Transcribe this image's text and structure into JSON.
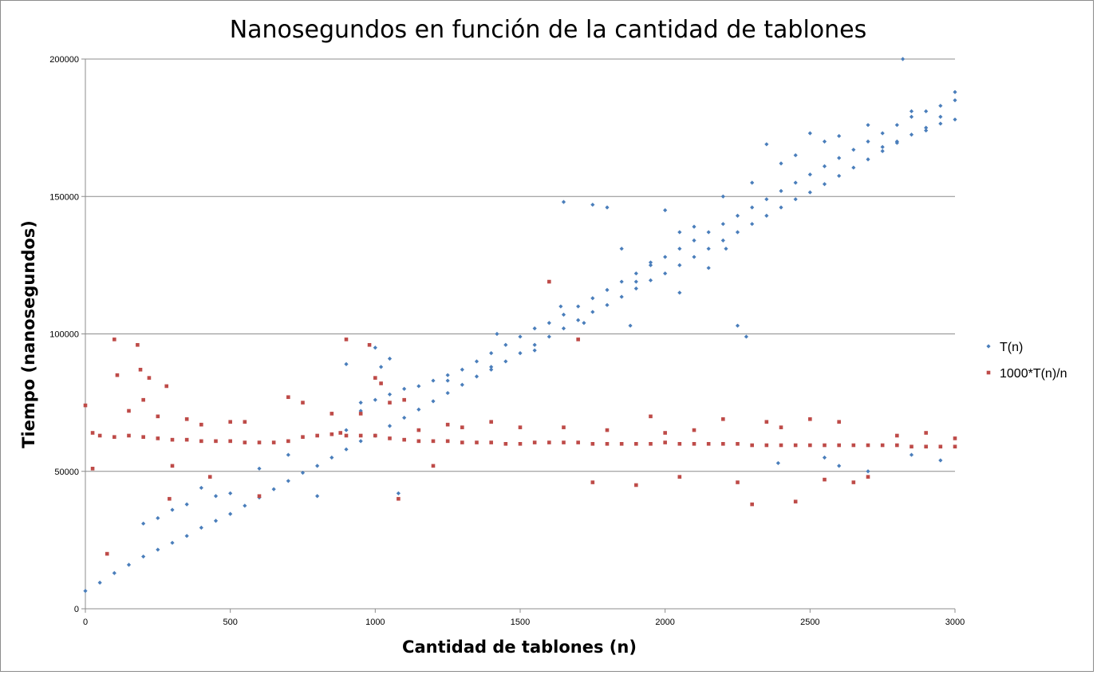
{
  "colors": {
    "series_t": "#4a7ebb",
    "series_norm": "#be4b48",
    "grid": "#8c8c8c",
    "axis": "#8c8c8c"
  },
  "chart_data": {
    "type": "scatter",
    "title": "Nanosegundos en función de la cantidad de tablones",
    "xlabel": "Cantidad de tablones (n)",
    "ylabel": "Tiempo (nanosegundos)",
    "xlim": [
      0,
      3000
    ],
    "ylim": [
      0,
      200000
    ],
    "x_ticks": [
      "0",
      "500",
      "1000",
      "1500",
      "2000",
      "2500",
      "3000"
    ],
    "y_ticks": [
      "0",
      "50000",
      "100000",
      "150000",
      "200000"
    ],
    "grid": "horizontal",
    "legend_position": "right",
    "series": [
      {
        "name": "T(n)",
        "marker": "diamond",
        "color": "#4a7ebb",
        "points": [
          [
            0,
            6500
          ],
          [
            50,
            9500
          ],
          [
            100,
            13000
          ],
          [
            150,
            16000
          ],
          [
            200,
            19000
          ],
          [
            250,
            21500
          ],
          [
            300,
            24000
          ],
          [
            350,
            26500
          ],
          [
            400,
            29500
          ],
          [
            450,
            32000
          ],
          [
            500,
            34500
          ],
          [
            550,
            37500
          ],
          [
            600,
            40500
          ],
          [
            650,
            43500
          ],
          [
            700,
            46500
          ],
          [
            750,
            49500
          ],
          [
            800,
            52000
          ],
          [
            850,
            55000
          ],
          [
            900,
            58000
          ],
          [
            950,
            61000
          ],
          [
            1000,
            63000
          ],
          [
            1050,
            66500
          ],
          [
            1100,
            69500
          ],
          [
            1150,
            72500
          ],
          [
            1200,
            75500
          ],
          [
            1250,
            78500
          ],
          [
            1300,
            81500
          ],
          [
            1350,
            84500
          ],
          [
            1400,
            87000
          ],
          [
            1450,
            90000
          ],
          [
            1500,
            93000
          ],
          [
            1550,
            96000
          ],
          [
            1600,
            99000
          ],
          [
            1650,
            102000
          ],
          [
            1700,
            105000
          ],
          [
            1750,
            108000
          ],
          [
            1800,
            110500
          ],
          [
            1850,
            113500
          ],
          [
            1900,
            116500
          ],
          [
            1950,
            119500
          ],
          [
            2000,
            122000
          ],
          [
            2050,
            125000
          ],
          [
            2100,
            128000
          ],
          [
            2150,
            131000
          ],
          [
            2200,
            134000
          ],
          [
            2250,
            137000
          ],
          [
            2300,
            140000
          ],
          [
            2350,
            143000
          ],
          [
            2400,
            146000
          ],
          [
            2450,
            149000
          ],
          [
            2500,
            151500
          ],
          [
            2550,
            154500
          ],
          [
            2600,
            157500
          ],
          [
            2650,
            160500
          ],
          [
            2700,
            163500
          ],
          [
            2750,
            166500
          ],
          [
            2800,
            169500
          ],
          [
            2850,
            172500
          ],
          [
            2900,
            175000
          ],
          [
            2950,
            176500
          ],
          [
            3000,
            178000
          ],
          [
            900,
            65000
          ],
          [
            950,
            72000
          ],
          [
            1000,
            76000
          ],
          [
            1050,
            78000
          ],
          [
            1100,
            80000
          ],
          [
            1150,
            81000
          ],
          [
            1200,
            83000
          ],
          [
            1250,
            85000
          ],
          [
            1300,
            87000
          ],
          [
            1350,
            90000
          ],
          [
            1400,
            93000
          ],
          [
            1450,
            96000
          ],
          [
            1500,
            99000
          ],
          [
            1550,
            102000
          ],
          [
            1600,
            104000
          ],
          [
            1650,
            107000
          ],
          [
            1700,
            110000
          ],
          [
            1750,
            113000
          ],
          [
            1800,
            116000
          ],
          [
            1850,
            119000
          ],
          [
            1900,
            122000
          ],
          [
            1950,
            125000
          ],
          [
            2000,
            128000
          ],
          [
            2050,
            131000
          ],
          [
            2100,
            134000
          ],
          [
            2150,
            137000
          ],
          [
            2200,
            140000
          ],
          [
            2250,
            143000
          ],
          [
            2300,
            146000
          ],
          [
            2350,
            149000
          ],
          [
            2400,
            152000
          ],
          [
            2450,
            155000
          ],
          [
            2500,
            158000
          ],
          [
            2550,
            161000
          ],
          [
            2600,
            164000
          ],
          [
            2650,
            167000
          ],
          [
            2700,
            170000
          ],
          [
            2750,
            173000
          ],
          [
            2800,
            176000
          ],
          [
            2850,
            179000
          ],
          [
            2900,
            181000
          ],
          [
            2950,
            183000
          ],
          [
            3000,
            185000
          ],
          [
            200,
            31000
          ],
          [
            250,
            33000
          ],
          [
            300,
            36000
          ],
          [
            350,
            38000
          ],
          [
            400,
            44000
          ],
          [
            450,
            41000
          ],
          [
            500,
            42000
          ],
          [
            600,
            51000
          ],
          [
            700,
            56000
          ],
          [
            800,
            41000
          ],
          [
            900,
            89000
          ],
          [
            950,
            75000
          ],
          [
            1000,
            95000
          ],
          [
            1020,
            88000
          ],
          [
            1050,
            91000
          ],
          [
            1080,
            42000
          ],
          [
            1250,
            83000
          ],
          [
            1400,
            88000
          ],
          [
            1550,
            94000
          ],
          [
            1650,
            148000
          ],
          [
            1750,
            147000
          ],
          [
            1800,
            146000
          ],
          [
            1850,
            131000
          ],
          [
            1900,
            119000
          ],
          [
            1950,
            126000
          ],
          [
            2000,
            145000
          ],
          [
            2050,
            137000
          ],
          [
            2100,
            139000
          ],
          [
            2150,
            124000
          ],
          [
            2200,
            150000
          ],
          [
            2250,
            103000
          ],
          [
            2300,
            155000
          ],
          [
            2350,
            169000
          ],
          [
            2400,
            162000
          ],
          [
            2450,
            165000
          ],
          [
            2500,
            173000
          ],
          [
            2550,
            170000
          ],
          [
            2600,
            172000
          ],
          [
            2700,
            176000
          ],
          [
            2750,
            168000
          ],
          [
            2800,
            170000
          ],
          [
            2820,
            200000
          ],
          [
            2850,
            181000
          ],
          [
            2900,
            174000
          ],
          [
            2950,
            179000
          ],
          [
            3000,
            188000
          ],
          [
            2550,
            55000
          ],
          [
            2600,
            52000
          ],
          [
            2700,
            50000
          ],
          [
            2850,
            56000
          ],
          [
            2950,
            54000
          ],
          [
            2390,
            53000
          ],
          [
            1420,
            100000
          ],
          [
            1640,
            110000
          ],
          [
            1720,
            104000
          ],
          [
            1880,
            103000
          ],
          [
            2050,
            115000
          ],
          [
            2210,
            131000
          ],
          [
            2280,
            99000
          ]
        ]
      },
      {
        "name": "1000*T(n)/n",
        "marker": "square",
        "color": "#be4b48",
        "points": [
          [
            0,
            74000
          ],
          [
            25,
            64000
          ],
          [
            50,
            63000
          ],
          [
            100,
            62500
          ],
          [
            150,
            63000
          ],
          [
            200,
            62500
          ],
          [
            250,
            62000
          ],
          [
            300,
            61500
          ],
          [
            350,
            61500
          ],
          [
            400,
            61000
          ],
          [
            450,
            61000
          ],
          [
            500,
            61000
          ],
          [
            550,
            60500
          ],
          [
            600,
            60500
          ],
          [
            650,
            60500
          ],
          [
            700,
            61000
          ],
          [
            750,
            62500
          ],
          [
            800,
            63000
          ],
          [
            850,
            63500
          ],
          [
            900,
            63000
          ],
          [
            950,
            63000
          ],
          [
            1000,
            63000
          ],
          [
            1050,
            62000
          ],
          [
            1100,
            61500
          ],
          [
            1150,
            61000
          ],
          [
            1200,
            61000
          ],
          [
            1250,
            61000
          ],
          [
            1300,
            60500
          ],
          [
            1350,
            60500
          ],
          [
            1400,
            60500
          ],
          [
            1450,
            60000
          ],
          [
            1500,
            60000
          ],
          [
            1550,
            60500
          ],
          [
            1600,
            60500
          ],
          [
            1650,
            60500
          ],
          [
            1700,
            60500
          ],
          [
            1750,
            60000
          ],
          [
            1800,
            60000
          ],
          [
            1850,
            60000
          ],
          [
            1900,
            60000
          ],
          [
            1950,
            60000
          ],
          [
            2000,
            60500
          ],
          [
            2050,
            60000
          ],
          [
            2100,
            60000
          ],
          [
            2150,
            60000
          ],
          [
            2200,
            60000
          ],
          [
            2250,
            60000
          ],
          [
            2300,
            59500
          ],
          [
            2350,
            59500
          ],
          [
            2400,
            59500
          ],
          [
            2450,
            59500
          ],
          [
            2500,
            59500
          ],
          [
            2550,
            59500
          ],
          [
            2600,
            59500
          ],
          [
            2650,
            59500
          ],
          [
            2700,
            59500
          ],
          [
            2750,
            59500
          ],
          [
            2800,
            59500
          ],
          [
            2850,
            59000
          ],
          [
            2900,
            59000
          ],
          [
            2950,
            59000
          ],
          [
            3000,
            59000
          ],
          [
            25,
            51000
          ],
          [
            75,
            20000
          ],
          [
            100,
            98000
          ],
          [
            110,
            85000
          ],
          [
            150,
            72000
          ],
          [
            180,
            96000
          ],
          [
            190,
            87000
          ],
          [
            200,
            76000
          ],
          [
            220,
            84000
          ],
          [
            250,
            70000
          ],
          [
            280,
            81000
          ],
          [
            290,
            40000
          ],
          [
            300,
            52000
          ],
          [
            350,
            69000
          ],
          [
            400,
            67000
          ],
          [
            430,
            48000
          ],
          [
            500,
            68000
          ],
          [
            550,
            68000
          ],
          [
            600,
            41000
          ],
          [
            700,
            77000
          ],
          [
            750,
            75000
          ],
          [
            850,
            71000
          ],
          [
            880,
            64000
          ],
          [
            900,
            98000
          ],
          [
            950,
            71000
          ],
          [
            980,
            96000
          ],
          [
            1000,
            84000
          ],
          [
            1020,
            82000
          ],
          [
            1050,
            75000
          ],
          [
            1080,
            40000
          ],
          [
            1100,
            76000
          ],
          [
            1150,
            65000
          ],
          [
            1200,
            52000
          ],
          [
            1250,
            67000
          ],
          [
            1300,
            66000
          ],
          [
            1400,
            68000
          ],
          [
            1500,
            66000
          ],
          [
            1600,
            119000
          ],
          [
            1650,
            66000
          ],
          [
            1700,
            98000
          ],
          [
            1750,
            46000
          ],
          [
            1800,
            65000
          ],
          [
            1900,
            45000
          ],
          [
            1950,
            70000
          ],
          [
            2000,
            64000
          ],
          [
            2050,
            48000
          ],
          [
            2100,
            65000
          ],
          [
            2200,
            69000
          ],
          [
            2250,
            46000
          ],
          [
            2300,
            38000
          ],
          [
            2350,
            68000
          ],
          [
            2400,
            66000
          ],
          [
            2450,
            39000
          ],
          [
            2500,
            69000
          ],
          [
            2550,
            47000
          ],
          [
            2600,
            68000
          ],
          [
            2650,
            46000
          ],
          [
            2700,
            48000
          ],
          [
            2800,
            63000
          ],
          [
            2900,
            64000
          ],
          [
            3000,
            62000
          ]
        ]
      }
    ]
  }
}
